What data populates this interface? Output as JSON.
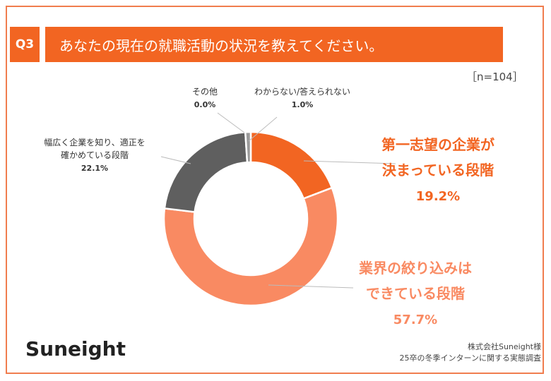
{
  "header": {
    "q_badge": "Q3",
    "question": "あなたの現在の就職活動の状況を教えてください。"
  },
  "sample_size": "［n=104］",
  "brand": {
    "logo": "Suneight"
  },
  "source": {
    "line1": "株式会社Suneight様",
    "line2": "25卒の冬季インターンに関する実態調査"
  },
  "colors": {
    "accent": "#f26522",
    "frame": "#f07d4e"
  },
  "chart_data": {
    "type": "pie",
    "style": "donut",
    "slices": [
      {
        "label_lines": [
          "第一志望の企業が",
          "決まっている段階"
        ],
        "value": 19.2,
        "value_label": "19.2%",
        "color": "#f26522"
      },
      {
        "label_lines": [
          "業界の絞り込みは",
          "できている段階"
        ],
        "value": 57.7,
        "value_label": "57.7%",
        "color": "#f98a62"
      },
      {
        "label_lines": [
          "幅広く企業を知り、適正を",
          "確かめている段階"
        ],
        "value": 22.1,
        "value_label": "22.1%",
        "color": "#5f5f5f"
      },
      {
        "label_lines": [
          "わからない/答えられない"
        ],
        "value": 1.0,
        "value_label": "1.0%",
        "color": "#9a9a9a"
      },
      {
        "label_lines": [
          "その他"
        ],
        "value": 0.0,
        "value_label": "0.0%",
        "color": "#c8c8c8"
      }
    ]
  }
}
